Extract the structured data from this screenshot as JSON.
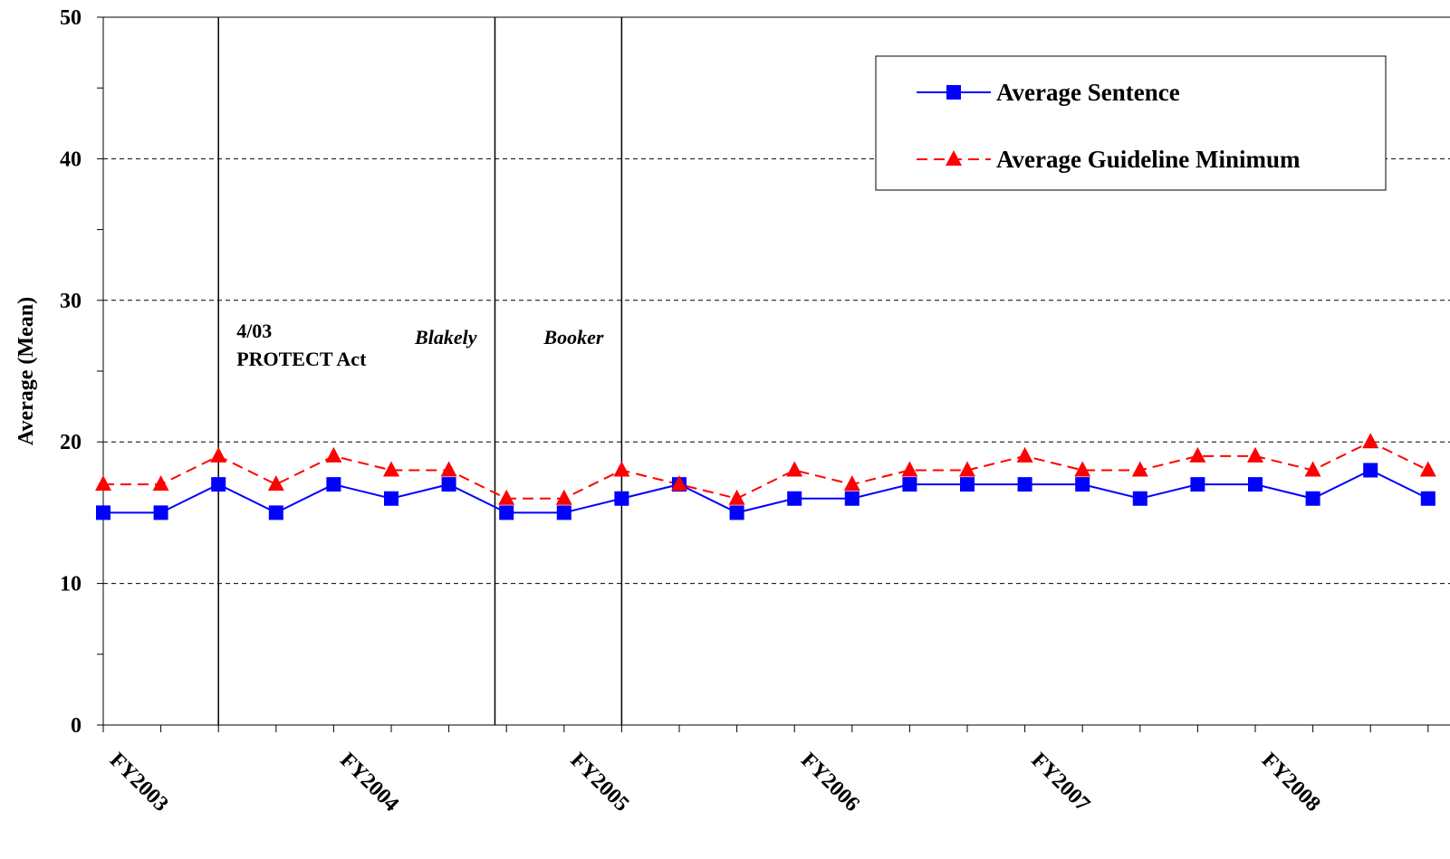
{
  "chart_data": {
    "type": "line",
    "ylabel": "Average (Mean)",
    "ylim": [
      0,
      50
    ],
    "yticks": [
      0,
      10,
      20,
      30,
      40,
      50
    ],
    "grid": "horizontal dashed",
    "x_labels": [
      {
        "index": 0,
        "label": "FY2003"
      },
      {
        "index": 4,
        "label": "FY2004"
      },
      {
        "index": 8,
        "label": "FY2005"
      },
      {
        "index": 12,
        "label": "FY2006"
      },
      {
        "index": 16,
        "label": "FY2007"
      },
      {
        "index": 20,
        "label": "FY2008"
      }
    ],
    "series": [
      {
        "name": "Average Sentence",
        "color": "#0000ff",
        "marker": "square",
        "line": "solid",
        "values": [
          15,
          15,
          17,
          15,
          17,
          16,
          17,
          15,
          15,
          16,
          17,
          15,
          16,
          16,
          17,
          17,
          17,
          17,
          16,
          17,
          17,
          16,
          18,
          16
        ]
      },
      {
        "name": "Average Guideline Minimum",
        "color": "#ff0000",
        "marker": "triangle",
        "line": "dashed",
        "values": [
          17,
          17,
          19,
          17,
          19,
          18,
          18,
          16,
          16,
          18,
          17,
          16,
          18,
          17,
          18,
          18,
          19,
          18,
          18,
          19,
          19,
          18,
          20,
          18
        ]
      }
    ],
    "events": [
      {
        "position": 2,
        "line1": "4/03",
        "line2": "PROTECT Act",
        "italic": false
      },
      {
        "position": 6.8,
        "line1": "Blakely",
        "line2": "",
        "italic": true
      },
      {
        "position": 9,
        "line1": "Booker",
        "line2": "",
        "italic": true
      }
    ],
    "legend": {
      "placement": "top-right"
    }
  }
}
